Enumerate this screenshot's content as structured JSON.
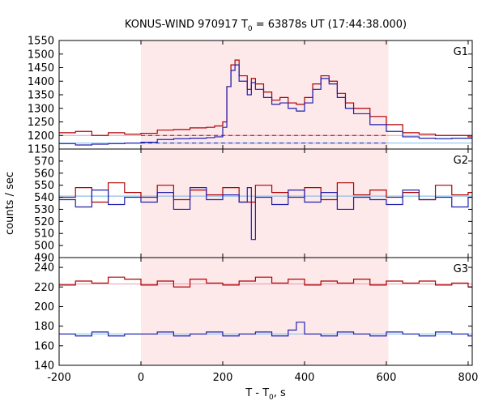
{
  "chart_data": {
    "type": "line",
    "title_main": "KONUS-WIND 970917 T",
    "title_sub": "0",
    "title_rest": " = 63878s UT (17:44:38.000)",
    "xlabel_main": "T - T",
    "xlabel_sub": "0",
    "xlabel_rest": ", s",
    "ylabel": "counts / sec",
    "xlim": [
      -200,
      810
    ],
    "x_ticks": [
      -200,
      0,
      200,
      400,
      600,
      800
    ],
    "shaded_interval": [
      0,
      605
    ],
    "colors": {
      "shade": "#fde8ea",
      "red": "#b00000",
      "red_light": "#e89ab4",
      "blue": "#2020b0",
      "blue_light": "#7cc0f0"
    },
    "panels": [
      {
        "name": "G1",
        "ylim": [
          1150,
          1550
        ],
        "yticks": [
          1150,
          1200,
          1250,
          1300,
          1350,
          1400,
          1450,
          1500,
          1550
        ],
        "background_levels": {
          "red": 1200,
          "blue": 1172
        },
        "series": [
          {
            "name": "",
            "color": "red",
            "x": [
              -200,
              -160,
              -120,
              -80,
              -40,
              0,
              40,
              80,
              120,
              160,
              180,
              200,
              210,
              220,
              230,
              240,
              260,
              270,
              280,
              300,
              320,
              340,
              360,
              380,
              400,
              420,
              440,
              460,
              480,
              500,
              520,
              560,
              600,
              640,
              680,
              720,
              760,
              800
            ],
            "y": [
              1210,
              1215,
              1200,
              1210,
              1205,
              1208,
              1220,
              1222,
              1228,
              1230,
              1235,
              1250,
              1380,
              1460,
              1478,
              1420,
              1370,
              1410,
              1390,
              1360,
              1330,
              1340,
              1320,
              1315,
              1340,
              1390,
              1420,
              1400,
              1355,
              1320,
              1300,
              1270,
              1240,
              1210,
              1205,
              1200,
              1200,
              1195
            ]
          },
          {
            "name": "",
            "color": "blue",
            "x": [
              -200,
              -160,
              -120,
              -80,
              -40,
              0,
              40,
              80,
              120,
              160,
              180,
              200,
              210,
              220,
              230,
              240,
              260,
              270,
              280,
              300,
              320,
              340,
              360,
              380,
              400,
              420,
              440,
              460,
              480,
              500,
              520,
              560,
              600,
              640,
              680,
              720,
              760,
              800
            ],
            "y": [
              1170,
              1165,
              1168,
              1170,
              1172,
              1175,
              1185,
              1188,
              1190,
              1192,
              1195,
              1230,
              1380,
              1440,
              1460,
              1400,
              1350,
              1395,
              1370,
              1340,
              1315,
              1320,
              1300,
              1290,
              1320,
              1370,
              1410,
              1390,
              1340,
              1300,
              1280,
              1240,
              1215,
              1195,
              1190,
              1188,
              1190,
              1190
            ]
          }
        ]
      },
      {
        "name": "G2",
        "ylim": [
          490,
          580
        ],
        "yticks": [
          490,
          500,
          510,
          520,
          530,
          540,
          550,
          560,
          570
        ],
        "background_levels": {
          "red": 541,
          "blue": 541
        },
        "series": [
          {
            "name": "",
            "color": "red",
            "x": [
              -200,
              -160,
              -120,
              -80,
              -40,
              0,
              40,
              80,
              120,
              160,
              200,
              240,
              280,
              320,
              360,
              400,
              440,
              480,
              520,
              560,
              600,
              640,
              680,
              720,
              760,
              800
            ],
            "y": [
              540,
              548,
              536,
              552,
              544,
              540,
              550,
              538,
              546,
              542,
              548,
              536,
              550,
              544,
              540,
              548,
              538,
              552,
              542,
              546,
              540,
              544,
              538,
              550,
              542,
              544
            ]
          },
          {
            "name": "",
            "color": "blue",
            "x": [
              -200,
              -160,
              -120,
              -80,
              -40,
              0,
              40,
              80,
              120,
              160,
              200,
              240,
              260,
              270,
              280,
              320,
              360,
              400,
              440,
              480,
              520,
              560,
              600,
              640,
              680,
              720,
              760,
              800
            ],
            "y": [
              538,
              532,
              546,
              534,
              540,
              536,
              544,
              530,
              548,
              538,
              542,
              536,
              548,
              505,
              540,
              534,
              546,
              536,
              544,
              530,
              540,
              538,
              534,
              546,
              538,
              540,
              532,
              540
            ]
          }
        ]
      },
      {
        "name": "G3",
        "ylim": [
          140,
          250
        ],
        "yticks": [
          140,
          160,
          180,
          200,
          220,
          240
        ],
        "background_levels": {
          "red": 223,
          "blue": 172
        },
        "series": [
          {
            "name": "",
            "color": "red",
            "x": [
              -200,
              -160,
              -120,
              -80,
              -40,
              0,
              40,
              80,
              120,
              160,
              200,
              240,
              280,
              320,
              360,
              400,
              440,
              480,
              520,
              560,
              600,
              640,
              680,
              720,
              760,
              800
            ],
            "y": [
              222,
              226,
              224,
              230,
              228,
              222,
              226,
              220,
              228,
              224,
              222,
              226,
              230,
              224,
              228,
              222,
              226,
              224,
              228,
              222,
              226,
              224,
              226,
              222,
              224,
              220
            ]
          },
          {
            "name": "",
            "color": "blue",
            "x": [
              -200,
              -160,
              -120,
              -80,
              -40,
              0,
              40,
              80,
              120,
              160,
              200,
              240,
              280,
              320,
              360,
              380,
              400,
              440,
              480,
              520,
              560,
              600,
              640,
              680,
              720,
              760,
              800
            ],
            "y": [
              172,
              170,
              174,
              170,
              172,
              172,
              174,
              170,
              172,
              174,
              170,
              172,
              174,
              170,
              176,
              184,
              172,
              170,
              174,
              172,
              170,
              174,
              172,
              170,
              174,
              172,
              170
            ]
          }
        ]
      }
    ]
  }
}
